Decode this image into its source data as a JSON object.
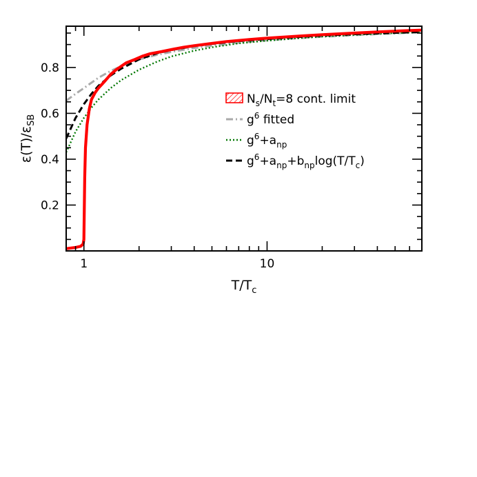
{
  "chart_data": {
    "type": "line",
    "title": "",
    "xlabel": {
      "main": "T/T",
      "sub": "c"
    },
    "ylabel": {
      "a": "ε(T)/ε",
      "sub": "SB"
    },
    "x_scale": "log",
    "xlim": [
      0.8,
      70
    ],
    "ylim": [
      0.0,
      0.98
    ],
    "x_major_ticks": [
      1,
      10
    ],
    "x_tick_labels": [
      "1",
      "10"
    ],
    "y_major_ticks": [
      0.2,
      0.4,
      0.6,
      0.8
    ],
    "y_tick_labels": [
      "0.2",
      "0.4",
      "0.6",
      "0.8"
    ],
    "grid": false,
    "legend_position": "center-right",
    "series": [
      {
        "legend": [
          {
            "t": "N"
          },
          {
            "t": "s",
            "sub": true
          },
          {
            "t": "/N"
          },
          {
            "t": "t",
            "sub": true
          },
          {
            "t": "=8 cont. limit"
          }
        ],
        "color": "#ff0000",
        "style": "band",
        "x": [
          0.8,
          0.9,
          0.96,
          0.99,
          1.0,
          1.01,
          1.02,
          1.04,
          1.07,
          1.1,
          1.15,
          1.2,
          1.3,
          1.4,
          1.5,
          1.7,
          1.9,
          2.1,
          2.3,
          2.6,
          3.0,
          3.5,
          4.0,
          5.0,
          6.0,
          8.0,
          10,
          15,
          20,
          30,
          40,
          55,
          70
        ],
        "y": [
          0.01,
          0.015,
          0.02,
          0.03,
          0.05,
          0.32,
          0.45,
          0.55,
          0.62,
          0.66,
          0.69,
          0.71,
          0.74,
          0.77,
          0.79,
          0.82,
          0.835,
          0.85,
          0.86,
          0.868,
          0.878,
          0.888,
          0.895,
          0.905,
          0.913,
          0.922,
          0.928,
          0.937,
          0.943,
          0.95,
          0.955,
          0.96,
          0.963
        ]
      },
      {
        "legend": [
          {
            "t": "g"
          },
          {
            "t": "6",
            "sup": true
          },
          {
            "t": " fitted"
          }
        ],
        "color": "#aaaaaa",
        "style": "dashdot",
        "x": [
          0.8,
          0.9,
          1.0,
          1.2,
          1.4,
          1.7,
          2.0,
          2.5,
          3.0,
          4.0,
          5.0,
          7.0,
          10,
          15,
          20,
          30,
          50,
          70
        ],
        "y": [
          0.655,
          0.685,
          0.71,
          0.755,
          0.785,
          0.815,
          0.835,
          0.855,
          0.868,
          0.885,
          0.895,
          0.908,
          0.918,
          0.928,
          0.934,
          0.941,
          0.949,
          0.953
        ]
      },
      {
        "legend": [
          {
            "t": "g"
          },
          {
            "t": "6",
            "sup": true
          },
          {
            "t": "+a"
          },
          {
            "t": "np",
            "sub": true
          }
        ],
        "color": "#007700",
        "style": "dotted",
        "x": [
          0.8,
          0.9,
          1.0,
          1.1,
          1.2,
          1.4,
          1.6,
          2.0,
          2.5,
          3.0,
          4.0,
          5.0,
          7.0,
          10,
          15,
          20,
          30,
          50,
          70
        ],
        "y": [
          0.43,
          0.52,
          0.58,
          0.625,
          0.66,
          0.71,
          0.745,
          0.79,
          0.825,
          0.848,
          0.873,
          0.888,
          0.905,
          0.917,
          0.928,
          0.935,
          0.942,
          0.95,
          0.954
        ]
      },
      {
        "legend": [
          {
            "t": "g"
          },
          {
            "t": "6",
            "sup": true
          },
          {
            "t": "+a"
          },
          {
            "t": "np",
            "sub": true
          },
          {
            "t": "+b"
          },
          {
            "t": "np",
            "sub": true
          },
          {
            "t": "log(T/T"
          },
          {
            "t": "c",
            "sub": true
          },
          {
            "t": ")"
          }
        ],
        "color": "#000000",
        "style": "dashed",
        "x": [
          0.8,
          0.9,
          1.0,
          1.1,
          1.2,
          1.4,
          1.6,
          2.0,
          2.5,
          3.0,
          4.0,
          5.0,
          7.0,
          10,
          15,
          20,
          30,
          50,
          70
        ],
        "y": [
          0.49,
          0.58,
          0.64,
          0.685,
          0.72,
          0.765,
          0.795,
          0.835,
          0.862,
          0.876,
          0.893,
          0.903,
          0.915,
          0.924,
          0.933,
          0.939,
          0.945,
          0.951,
          0.955
        ]
      }
    ]
  }
}
